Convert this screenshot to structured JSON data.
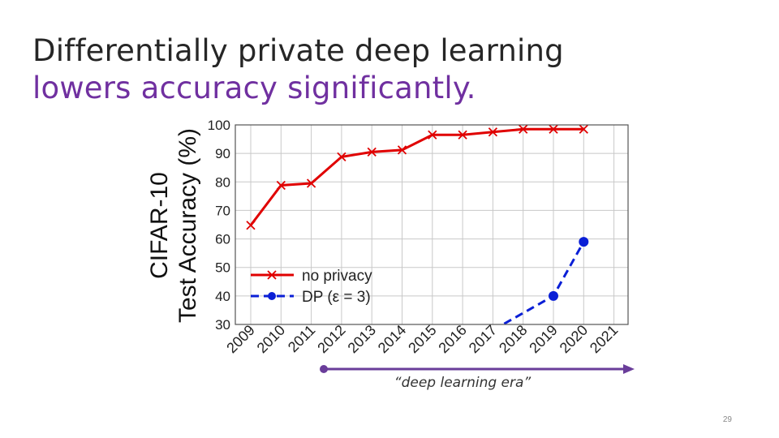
{
  "slide": {
    "title_line1": "Differentially private deep learning",
    "title_line2": "lowers accuracy significantly.",
    "era_label": "“deep learning era”",
    "page_number": "29"
  },
  "colors": {
    "no_privacy": "#e00000",
    "dp": "#0a1fd6",
    "era_arrow": "#6a3d9a",
    "grid": "#c8c8c8"
  },
  "chart_data": {
    "type": "line",
    "title": "",
    "xlabel": "",
    "ylabel_line1": "CIFAR-10",
    "ylabel_line2": "Test Accuracy (%)",
    "ylim": [
      30,
      100
    ],
    "yticks": [
      30,
      40,
      50,
      60,
      70,
      80,
      90,
      100
    ],
    "x": [
      "2009",
      "2010",
      "2011",
      "2012",
      "2013",
      "2014",
      "2015",
      "2016",
      "2017",
      "2018",
      "2019",
      "2020",
      "2021"
    ],
    "grid": true,
    "legend_position": "lower-left",
    "series": [
      {
        "name": "no privacy",
        "style": "solid",
        "marker": "x",
        "points": [
          [
            "2009",
            64.8
          ],
          [
            "2010",
            78.8
          ],
          [
            "2011",
            79.5
          ],
          [
            "2012",
            88.8
          ],
          [
            "2013",
            90.5
          ],
          [
            "2014",
            91.2
          ],
          [
            "2015",
            96.5
          ],
          [
            "2016",
            96.5
          ],
          [
            "2017",
            97.5
          ],
          [
            "2018",
            98.5
          ],
          [
            "2019",
            98.5
          ],
          [
            "2020",
            98.5
          ]
        ]
      },
      {
        "name": "DP (ε = 3)",
        "style": "dashed",
        "marker": "circle",
        "points": [
          [
            "2017",
            28.0
          ],
          [
            "2019",
            40.0
          ],
          [
            "2020",
            59.0
          ]
        ]
      }
    ]
  }
}
